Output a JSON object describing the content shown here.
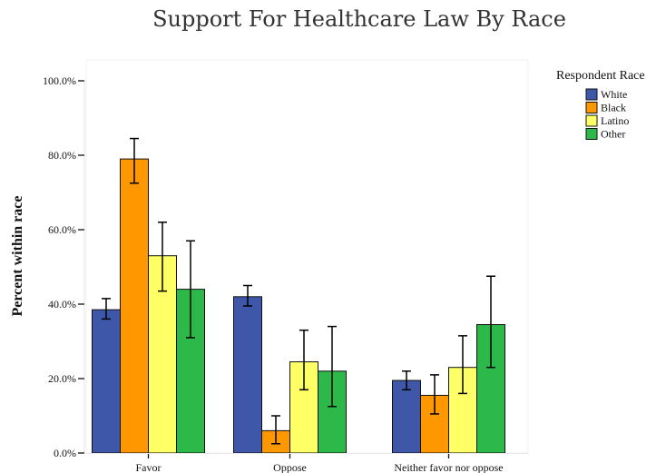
{
  "chart_data": {
    "type": "bar",
    "title": "Support For Healthcare Law By Race",
    "xlabel": "",
    "ylabel": "Percent within race",
    "ylim": [
      0,
      100
    ],
    "yticks": [
      "0.0%",
      "20.0%",
      "40.0%",
      "60.0%",
      "80.0%",
      "100.0%"
    ],
    "categories": [
      "Favor",
      "Oppose",
      "Neither favor nor oppose"
    ],
    "legend": {
      "title": "Respondent Race",
      "placement": "top-right"
    },
    "grid": false,
    "error_bars": true,
    "series": [
      {
        "name": "White",
        "color": "#3f57a8",
        "values": [
          38.5,
          42.0,
          19.5
        ],
        "err_low": [
          36.0,
          39.5,
          17.0
        ],
        "err_high": [
          41.5,
          45.0,
          22.0
        ]
      },
      {
        "name": "Black",
        "color": "#ff9800",
        "values": [
          79.0,
          6.0,
          15.5
        ],
        "err_low": [
          72.5,
          2.5,
          10.5
        ],
        "err_high": [
          84.5,
          10.0,
          21.0
        ]
      },
      {
        "name": "Latino",
        "color": "#ffff66",
        "values": [
          53.0,
          24.5,
          23.0
        ],
        "err_low": [
          43.5,
          17.0,
          16.0
        ],
        "err_high": [
          62.0,
          33.0,
          31.5
        ]
      },
      {
        "name": "Other",
        "color": "#2db84a",
        "values": [
          44.0,
          22.0,
          34.5
        ],
        "err_low": [
          31.0,
          12.5,
          23.0
        ],
        "err_high": [
          57.0,
          34.0,
          47.5
        ]
      }
    ]
  }
}
